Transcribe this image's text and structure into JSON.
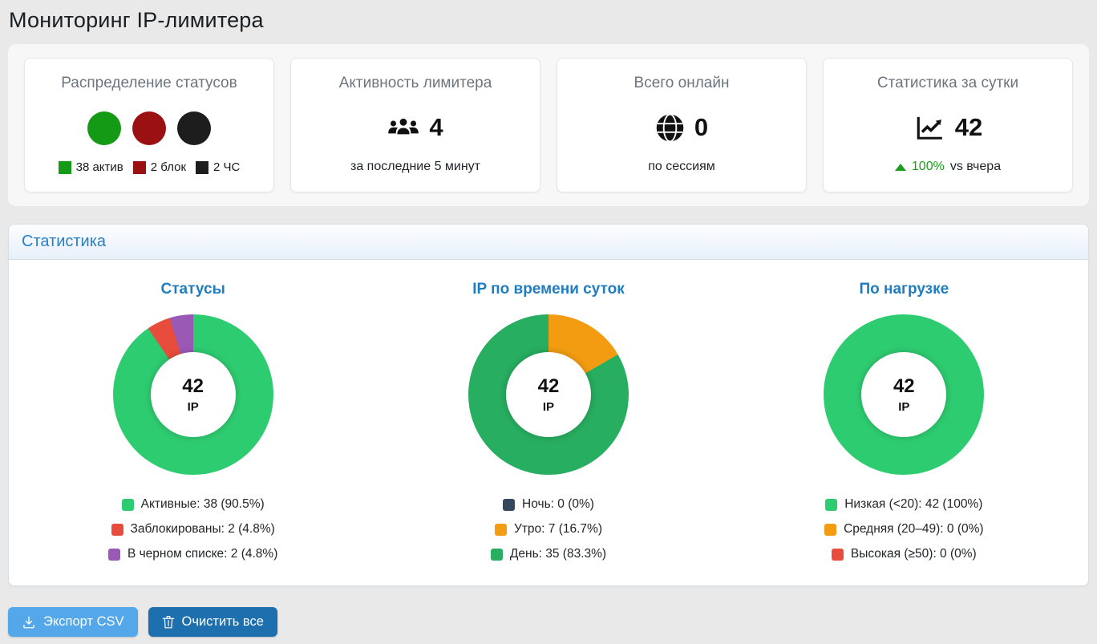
{
  "page": {
    "title": "Мониторинг IP-лимитера"
  },
  "cards": {
    "status_distribution": {
      "title": "Распределение статусов",
      "circles": [
        {
          "name": "active",
          "color": "#149a14"
        },
        {
          "name": "blocked",
          "color": "#9b1010"
        },
        {
          "name": "emergency",
          "color": "#1d1d1d"
        }
      ],
      "legend": [
        {
          "label": "38 актив",
          "color": "#149a14"
        },
        {
          "label": "2 блок",
          "color": "#9b1010"
        },
        {
          "label": "2 ЧС",
          "color": "#1d1d1d"
        }
      ]
    },
    "limiter_activity": {
      "title": "Активность лимитера",
      "icon": "users-icon",
      "value": "4",
      "subtitle": "за последние 5 минут"
    },
    "total_online": {
      "title": "Всего онлайн",
      "icon": "globe-icon",
      "value": "0",
      "subtitle": "по сессиям"
    },
    "daily_stats": {
      "title": "Статистика за сутки",
      "icon": "chart-line-icon",
      "value": "42",
      "delta_pct": "100%",
      "delta_text": "vs вчера",
      "delta_color": "#1e9e1e"
    }
  },
  "stats_panel": {
    "title": "Статистика"
  },
  "chart_data": [
    {
      "type": "pie",
      "donut": true,
      "title": "Статусы",
      "center_value": "42",
      "center_label": "IP",
      "total": 42,
      "legend_position": "bottom",
      "slices": [
        {
          "name": "active",
          "label": "Активные: 38 (90.5%)",
          "value": 38,
          "pct": 90.5,
          "color": "#2ecc71"
        },
        {
          "name": "blocked",
          "label": "Заблокированы: 2 (4.8%)",
          "value": 2,
          "pct": 4.8,
          "color": "#e74c3c"
        },
        {
          "name": "blacklisted",
          "label": "В черном списке: 2 (4.8%)",
          "value": 2,
          "pct": 4.8,
          "color": "#9b59b6"
        }
      ]
    },
    {
      "type": "pie",
      "donut": true,
      "title": "IP по времени суток",
      "center_value": "42",
      "center_label": "IP",
      "total": 42,
      "legend_position": "bottom",
      "slices": [
        {
          "name": "night",
          "label": "Ночь: 0 (0%)",
          "value": 0,
          "pct": 0,
          "color": "#34495e"
        },
        {
          "name": "morning",
          "label": "Утро: 7 (16.7%)",
          "value": 7,
          "pct": 16.7,
          "color": "#f39c12"
        },
        {
          "name": "day",
          "label": "День: 35 (83.3%)",
          "value": 35,
          "pct": 83.3,
          "color": "#27ae60"
        }
      ]
    },
    {
      "type": "pie",
      "donut": true,
      "title": "По нагрузке",
      "center_value": "42",
      "center_label": "IP",
      "total": 42,
      "legend_position": "bottom",
      "slices": [
        {
          "name": "low",
          "label": "Низкая (<20): 42 (100%)",
          "value": 42,
          "pct": 100,
          "color": "#2ecc71"
        },
        {
          "name": "medium",
          "label": "Средняя (20–49): 0 (0%)",
          "value": 0,
          "pct": 0,
          "color": "#f39c12"
        },
        {
          "name": "high",
          "label": "Высокая (≥50): 0 (0%)",
          "value": 0,
          "pct": 0,
          "color": "#e74c3c"
        }
      ]
    }
  ],
  "buttons": {
    "export_csv": "Экспорт CSV",
    "clear_all": "Очистить все"
  }
}
